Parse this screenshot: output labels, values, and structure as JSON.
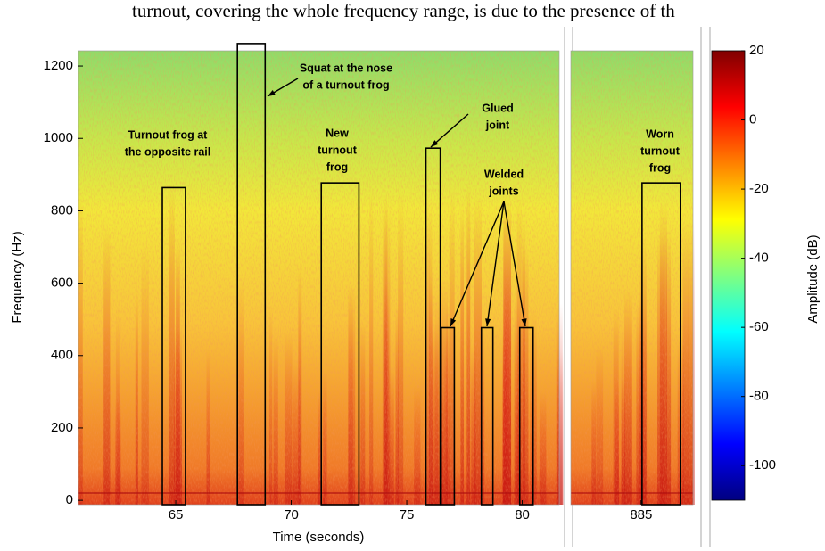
{
  "caption_fragment": "turnout, covering the whole frequency range, is due to the presence of th",
  "chart_data": {
    "type": "spectrogram",
    "xlabel": "Time (seconds)",
    "ylabel": "Frequency (Hz)",
    "ylim": [
      -12,
      1242
    ],
    "yticks": [
      0,
      200,
      400,
      600,
      800,
      1000,
      1200
    ],
    "panels": [
      {
        "xlim": [
          60.79,
          81.6
        ],
        "xticks": [
          65,
          70,
          75,
          80
        ]
      },
      {
        "xlim": [
          881.95,
          887.25
        ],
        "xticks": [
          885
        ]
      }
    ],
    "colormap": "jet",
    "colorbar": {
      "label": "Amplitude (dB)",
      "lim": [
        -110,
        20
      ],
      "ticks": [
        20,
        0,
        -20,
        -40,
        -60,
        -80,
        -100
      ]
    },
    "regions": [
      {
        "x0": 64.42,
        "x1": 65.42,
        "top": 864
      },
      {
        "x0": 67.67,
        "x1": 68.87,
        "top": 1262
      },
      {
        "x0": 71.3,
        "x1": 72.93,
        "top": 877
      },
      {
        "x0": 75.83,
        "x1": 76.45,
        "top": 973
      },
      {
        "x0": 76.49,
        "x1": 77.06,
        "top": 477
      },
      {
        "x0": 78.23,
        "x1": 78.73,
        "top": 477
      },
      {
        "x0": 79.89,
        "x1": 80.47,
        "top": 477
      },
      {
        "x0": 885.04,
        "x1": 886.7,
        "top": 877
      }
    ],
    "annotations": [
      {
        "lines": [
          "Turnout frog at",
          "the opposite rail"
        ]
      },
      {
        "lines": [
          "Squat at the nose",
          "of a turnout frog"
        ]
      },
      {
        "lines": [
          "New",
          "turnout",
          "frog"
        ]
      },
      {
        "lines": [
          "Glued",
          "joint"
        ]
      },
      {
        "lines": [
          "Welded",
          "joints"
        ]
      },
      {
        "lines": [
          "Worn",
          "turnout",
          "frog"
        ]
      }
    ]
  }
}
